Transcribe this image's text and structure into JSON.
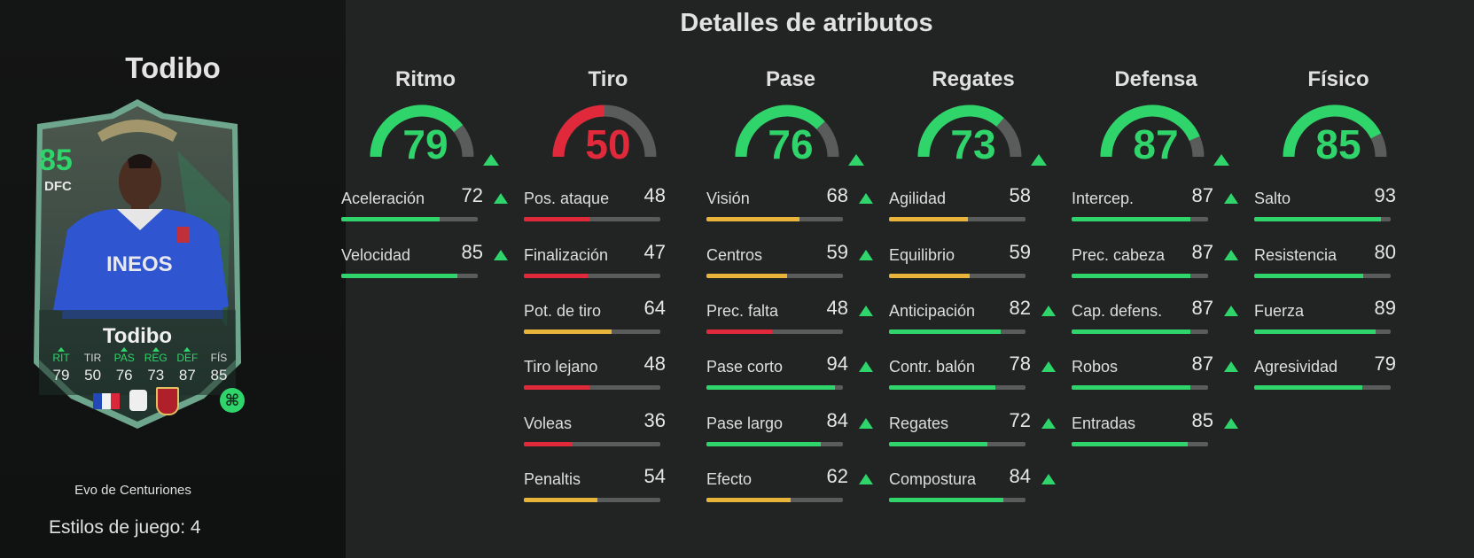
{
  "player": {
    "name": "Todibo",
    "card": {
      "rating": "85",
      "position": "DFC",
      "name": "Todibo",
      "stats": [
        {
          "label": "RIT",
          "value": "79",
          "upgraded": true
        },
        {
          "label": "TIR",
          "value": "50",
          "upgraded": false
        },
        {
          "label": "PAS",
          "value": "76",
          "upgraded": true
        },
        {
          "label": "REG",
          "value": "73",
          "upgraded": true
        },
        {
          "label": "DEF",
          "value": "87",
          "upgraded": true
        },
        {
          "label": "FÍS",
          "value": "85",
          "upgraded": false
        }
      ],
      "evo_badge_icon": "evolution-icon"
    },
    "evo_name": "Evo de Centuriones",
    "playstyles": "Estilos de juego: 4"
  },
  "details_title": "Detalles de atributos",
  "colors": {
    "green": "#2fd46b",
    "yellow": "#e8b43a",
    "red": "#e0293a",
    "track": "#5a5b5b"
  },
  "categories": [
    {
      "name": "Ritmo",
      "value": 79,
      "upgraded": true,
      "color": "green",
      "attributes": [
        {
          "label": "Aceleración",
          "value": 72,
          "upgraded": true
        },
        {
          "label": "Velocidad",
          "value": 85,
          "upgraded": true
        }
      ]
    },
    {
      "name": "Tiro",
      "value": 50,
      "upgraded": false,
      "color": "red",
      "attributes": [
        {
          "label": "Pos. ataque",
          "value": 48,
          "upgraded": false
        },
        {
          "label": "Finalización",
          "value": 47,
          "upgraded": false
        },
        {
          "label": "Pot. de tiro",
          "value": 64,
          "upgraded": false
        },
        {
          "label": "Tiro lejano",
          "value": 48,
          "upgraded": false
        },
        {
          "label": "Voleas",
          "value": 36,
          "upgraded": false
        },
        {
          "label": "Penaltis",
          "value": 54,
          "upgraded": false
        }
      ]
    },
    {
      "name": "Pase",
      "value": 76,
      "upgraded": true,
      "color": "green",
      "attributes": [
        {
          "label": "Visión",
          "value": 68,
          "upgraded": true
        },
        {
          "label": "Centros",
          "value": 59,
          "upgraded": true
        },
        {
          "label": "Prec. falta",
          "value": 48,
          "upgraded": true
        },
        {
          "label": "Pase corto",
          "value": 94,
          "upgraded": true
        },
        {
          "label": "Pase largo",
          "value": 84,
          "upgraded": true
        },
        {
          "label": "Efecto",
          "value": 62,
          "upgraded": true
        }
      ]
    },
    {
      "name": "Regates",
      "value": 73,
      "upgraded": true,
      "color": "green",
      "attributes": [
        {
          "label": "Agilidad",
          "value": 58,
          "upgraded": false
        },
        {
          "label": "Equilibrio",
          "value": 59,
          "upgraded": false
        },
        {
          "label": "Anticipación",
          "value": 82,
          "upgraded": true
        },
        {
          "label": "Contr. balón",
          "value": 78,
          "upgraded": true
        },
        {
          "label": "Regates",
          "value": 72,
          "upgraded": true
        },
        {
          "label": "Compostura",
          "value": 84,
          "upgraded": true
        }
      ]
    },
    {
      "name": "Defensa",
      "value": 87,
      "upgraded": true,
      "color": "green",
      "attributes": [
        {
          "label": "Intercep.",
          "value": 87,
          "upgraded": true
        },
        {
          "label": "Prec. cabeza",
          "value": 87,
          "upgraded": true
        },
        {
          "label": "Cap. defens.",
          "value": 87,
          "upgraded": true
        },
        {
          "label": "Robos",
          "value": 87,
          "upgraded": true
        },
        {
          "label": "Entradas",
          "value": 85,
          "upgraded": true
        }
      ]
    },
    {
      "name": "Físico",
      "value": 85,
      "upgraded": false,
      "color": "green",
      "attributes": [
        {
          "label": "Salto",
          "value": 93,
          "upgraded": false
        },
        {
          "label": "Resistencia",
          "value": 80,
          "upgraded": false
        },
        {
          "label": "Fuerza",
          "value": 89,
          "upgraded": false
        },
        {
          "label": "Agresividad",
          "value": 79,
          "upgraded": false
        }
      ]
    }
  ]
}
